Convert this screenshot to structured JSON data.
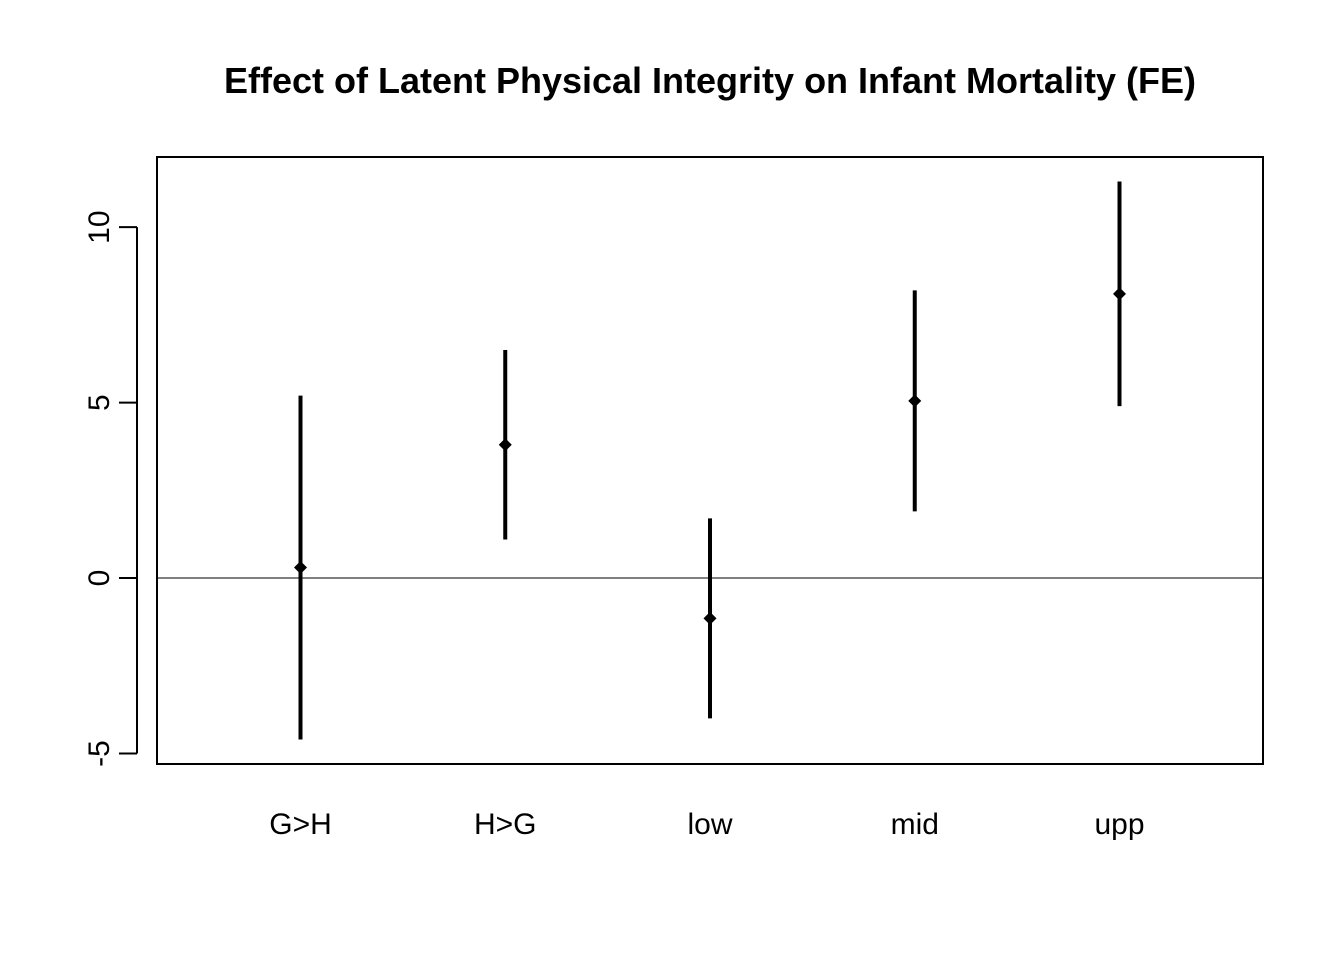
{
  "chart_data": {
    "type": "errorbar",
    "title": "Effect of Latent Physical Integrity on Infant Mortality (FE)",
    "xlabel": "",
    "ylabel": "",
    "categories": [
      "G>H",
      "H>G",
      "low",
      "mid",
      "upp"
    ],
    "estimates": [
      0.3,
      3.8,
      -1.15,
      5.05,
      8.1
    ],
    "lower": [
      -4.6,
      1.1,
      -4.0,
      1.9,
      4.9
    ],
    "upper": [
      5.2,
      6.5,
      1.7,
      8.2,
      11.3
    ],
    "ylim": [
      -5.3,
      12.0
    ],
    "yticks": [
      -5,
      0,
      5,
      10
    ],
    "ytick_labels": [
      "-5",
      "0",
      "5",
      "10"
    ],
    "reference_line": 0,
    "grid": false,
    "legend": "none",
    "colors": {
      "marks": "#000000",
      "axes": "#000000",
      "background": "#ffffff"
    }
  }
}
